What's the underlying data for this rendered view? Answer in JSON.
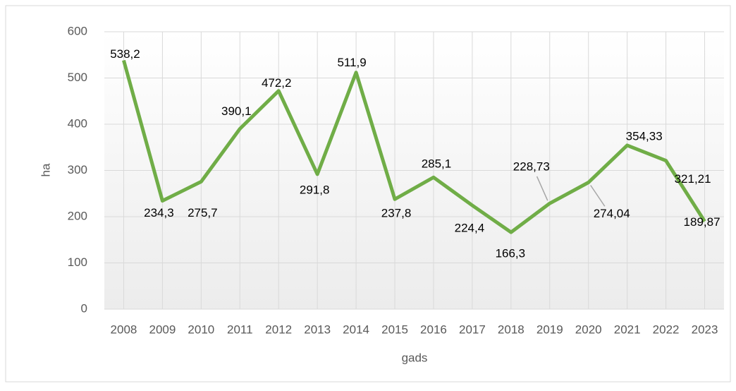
{
  "chart_data": {
    "type": "line",
    "x_label": "gads",
    "y_label": "ha",
    "categories": [
      "2008",
      "2009",
      "2010",
      "2011",
      "2012",
      "2013",
      "2014",
      "2015",
      "2016",
      "2017",
      "2018",
      "2019",
      "2020",
      "2021",
      "2022",
      "2023"
    ],
    "series": [
      {
        "name": "ha",
        "color": "#70ad47",
        "values": [
          538.2,
          234.3,
          275.7,
          390.1,
          472.2,
          291.8,
          511.9,
          237.8,
          285.1,
          224.4,
          166.3,
          228.73,
          274.04,
          354.33,
          321.21,
          189.87
        ],
        "value_labels": [
          "538,2",
          "234,3",
          "275,7",
          "390,1",
          "472,2",
          "291,8",
          "511,9",
          "237,8",
          "285,1",
          "224,4",
          "166,3",
          "228,73",
          "274,04",
          "354,33",
          "321,21",
          "189,87"
        ]
      }
    ],
    "ylim": [
      0,
      600
    ],
    "yticks": [
      0,
      100,
      200,
      300,
      400,
      500,
      600
    ],
    "grid": true
  }
}
